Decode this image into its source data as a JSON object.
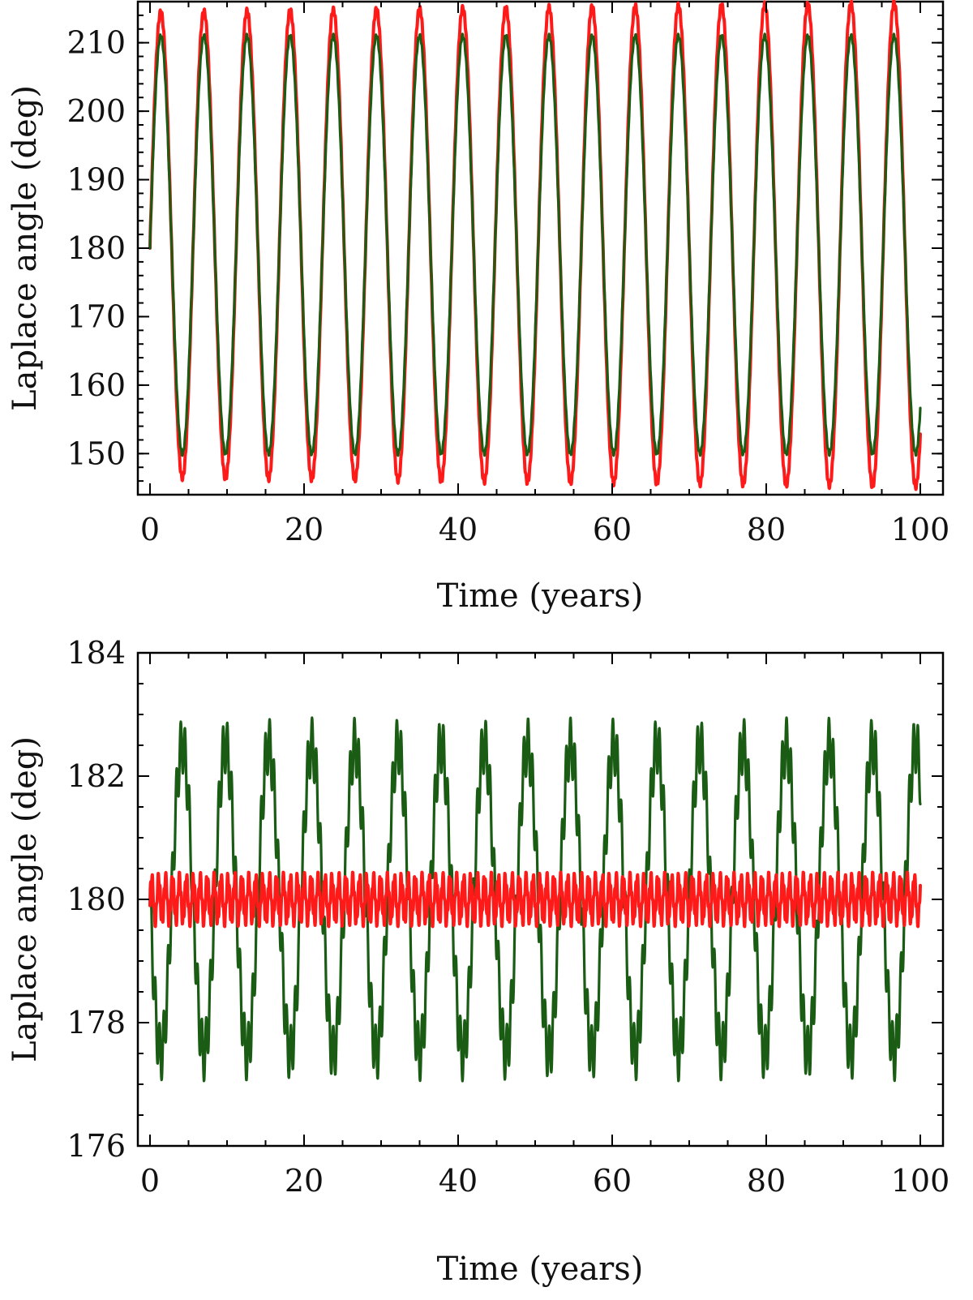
{
  "chart_data": [
    {
      "type": "line",
      "xlabel": "Time (years)",
      "ylabel": "Laplace angle (deg)",
      "xlim": [
        0,
        100
      ],
      "ylim": [
        144,
        216
      ],
      "xticks": [
        0,
        20,
        40,
        60,
        80,
        100
      ],
      "xtick_labels": [
        "0",
        "20",
        "40",
        "60",
        "80",
        "100"
      ],
      "yticks": [
        150,
        160,
        170,
        180,
        190,
        200,
        210
      ],
      "ytick_labels": [
        "150",
        "160",
        "170",
        "180",
        "190",
        "200",
        "210"
      ],
      "series": [
        {
          "name": "red",
          "color": "#ff1a1a",
          "start": 180,
          "center": 180.5,
          "amplitude": 34,
          "period_years": 5.6,
          "phase_deg": 0,
          "drift_amplitude_per_century": 0.8,
          "fine_period_years": 0.25,
          "fine_amplitude": 0.4
        },
        {
          "name": "green",
          "color": "#1a5c14",
          "start": 180,
          "center": 180.5,
          "amplitude": 30.5,
          "period_years": 5.6,
          "phase_deg": 0,
          "drift_amplitude_per_century": 0,
          "fine_period_years": 0.25,
          "fine_amplitude": 0.3
        }
      ]
    },
    {
      "type": "line",
      "xlabel": "Time (years)",
      "ylabel": "Laplace angle (deg)",
      "xlim": [
        0,
        100
      ],
      "ylim": [
        176,
        184
      ],
      "xticks": [
        0,
        20,
        40,
        60,
        80,
        100
      ],
      "xtick_labels": [
        "0",
        "20",
        "40",
        "60",
        "80",
        "100"
      ],
      "yticks": [
        176,
        178,
        180,
        182,
        184
      ],
      "ytick_labels": [
        "176",
        "178",
        "180",
        "182",
        "184"
      ],
      "series": [
        {
          "name": "green",
          "color": "#1a5c14",
          "start": 180,
          "center": 180,
          "amplitude": 2.5,
          "period_years": 5.6,
          "phase_deg": 180,
          "drift_amplitude_per_century": 0,
          "fine_period_years": 0.55,
          "fine_amplitude": 0.45
        },
        {
          "name": "red",
          "color": "#ff1a1a",
          "start": 179.9,
          "center": 180,
          "amplitude": 0.35,
          "period_years": 0.9,
          "phase_deg": 0,
          "drift_amplitude_per_century": 0,
          "fine_period_years": 0.25,
          "fine_amplitude": 0.1
        }
      ]
    }
  ]
}
